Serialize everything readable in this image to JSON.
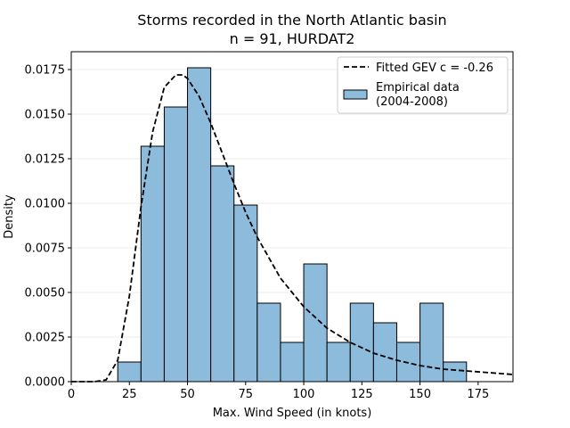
{
  "chart_data": {
    "type": "bar",
    "title_line1": "Storms recorded in the North Atlantic basin",
    "title_line2": "n = 91, HURDAT2",
    "xlabel": "Max. Wind Speed (in knots)",
    "ylabel": "Density",
    "xlim": [
      0,
      190
    ],
    "ylim": [
      0,
      0.0185
    ],
    "xticks": [
      0,
      25,
      50,
      75,
      100,
      125,
      150,
      175
    ],
    "yticks": [
      0.0,
      0.0025,
      0.005,
      0.0075,
      0.01,
      0.0125,
      0.015,
      0.0175
    ],
    "ytick_labels": [
      "0.0000",
      "0.0025",
      "0.0050",
      "0.0075",
      "0.0100",
      "0.0125",
      "0.0150",
      "0.0175"
    ],
    "grid": "horizontal",
    "legend_position": "top-right",
    "series": [
      {
        "name": "Empirical data\n(2004-2008)",
        "kind": "histogram",
        "color": "#8dbbdb",
        "edge_color": "#000000",
        "bins": [
          {
            "start": 20,
            "end": 30,
            "value": 0.0011
          },
          {
            "start": 30,
            "end": 40,
            "value": 0.0132
          },
          {
            "start": 40,
            "end": 50,
            "value": 0.0154
          },
          {
            "start": 50,
            "end": 60,
            "value": 0.0176
          },
          {
            "start": 60,
            "end": 70,
            "value": 0.0121
          },
          {
            "start": 70,
            "end": 80,
            "value": 0.0099
          },
          {
            "start": 80,
            "end": 90,
            "value": 0.0044
          },
          {
            "start": 90,
            "end": 100,
            "value": 0.0022
          },
          {
            "start": 100,
            "end": 110,
            "value": 0.0066
          },
          {
            "start": 110,
            "end": 120,
            "value": 0.0022
          },
          {
            "start": 120,
            "end": 130,
            "value": 0.0044
          },
          {
            "start": 130,
            "end": 140,
            "value": 0.0033
          },
          {
            "start": 140,
            "end": 150,
            "value": 0.0022
          },
          {
            "start": 150,
            "end": 160,
            "value": 0.0044
          },
          {
            "start": 160,
            "end": 170,
            "value": 0.0011
          }
        ]
      },
      {
        "name": "Fitted GEV c = -0.26",
        "kind": "line",
        "style": "dashed",
        "color": "#000000",
        "x": [
          0,
          10,
          15,
          20,
          25,
          30,
          35,
          40,
          45,
          48,
          50,
          55,
          60,
          65,
          70,
          75,
          80,
          90,
          100,
          110,
          120,
          130,
          140,
          150,
          160,
          170,
          180,
          190
        ],
        "y": [
          0.0,
          0.0,
          0.0001,
          0.0012,
          0.0048,
          0.0098,
          0.014,
          0.0165,
          0.0172,
          0.0172,
          0.017,
          0.016,
          0.0145,
          0.0128,
          0.0111,
          0.0095,
          0.0081,
          0.0058,
          0.0042,
          0.003,
          0.0022,
          0.0016,
          0.0012,
          0.0009,
          0.0007,
          0.0006,
          0.0005,
          0.0004
        ]
      }
    ]
  }
}
